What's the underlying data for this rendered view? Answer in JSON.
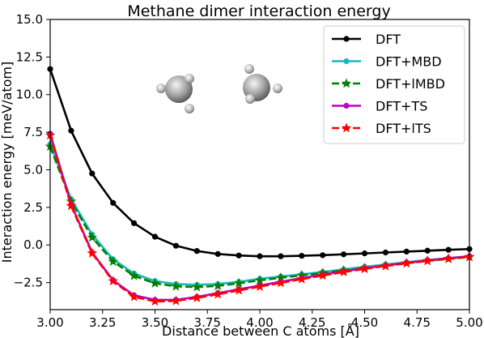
{
  "chart_data": {
    "type": "line",
    "title": "Methane dimer interaction energy",
    "xlabel": "Distance between C atoms [Å]",
    "ylabel": "Interaction energy [meV/atom]",
    "xlim": [
      3.0,
      5.0
    ],
    "ylim": [
      -4.3,
      15.0
    ],
    "xticks": [
      "3.00",
      "3.25",
      "3.50",
      "3.75",
      "4.00",
      "4.25",
      "4.50",
      "4.75",
      "5.00"
    ],
    "xtick_values": [
      3.0,
      3.25,
      3.5,
      3.75,
      4.0,
      4.25,
      4.5,
      4.75,
      5.0
    ],
    "yticks": [
      "−2.5",
      "0.0",
      "2.5",
      "5.0",
      "7.5",
      "10.0",
      "12.5",
      "15.0"
    ],
    "ytick_values": [
      -2.5,
      0.0,
      2.5,
      5.0,
      7.5,
      10.0,
      12.5,
      15.0
    ],
    "grid": false,
    "legend_position": "top-right",
    "x": [
      3.0,
      3.1,
      3.2,
      3.3,
      3.4,
      3.5,
      3.6,
      3.7,
      3.8,
      3.9,
      4.0,
      4.1,
      4.2,
      4.3,
      4.4,
      4.5,
      4.6,
      4.7,
      4.8,
      4.9,
      5.0
    ],
    "series": [
      {
        "name": "DFT",
        "color": "#000000",
        "linestyle": "solid",
        "marker": "circle",
        "values": [
          11.7,
          7.6,
          4.75,
          2.8,
          1.45,
          0.55,
          -0.05,
          -0.4,
          -0.6,
          -0.7,
          -0.75,
          -0.75,
          -0.72,
          -0.68,
          -0.62,
          -0.56,
          -0.5,
          -0.44,
          -0.38,
          -0.32,
          -0.27
        ]
      },
      {
        "name": "DFT+MBD",
        "color": "#1ab8b8",
        "linestyle": "solid",
        "marker": "circle",
        "values": [
          6.7,
          3.05,
          0.7,
          -0.95,
          -1.9,
          -2.4,
          -2.6,
          -2.65,
          -2.6,
          -2.45,
          -2.25,
          -2.1,
          -1.95,
          -1.8,
          -1.62,
          -1.45,
          -1.3,
          -1.15,
          -1.0,
          -0.88,
          -0.75
        ]
      },
      {
        "name": "DFT+lMBD",
        "color": "#008000",
        "linestyle": "dashed",
        "marker": "star",
        "values": [
          6.55,
          2.9,
          0.5,
          -1.1,
          -2.05,
          -2.55,
          -2.75,
          -2.8,
          -2.72,
          -2.55,
          -2.35,
          -2.18,
          -2.02,
          -1.86,
          -1.7,
          -1.53,
          -1.37,
          -1.21,
          -1.06,
          -0.93,
          -0.8
        ]
      },
      {
        "name": "DFT+TS",
        "color": "#c000c0",
        "linestyle": "solid",
        "marker": "circle",
        "values": [
          7.4,
          2.7,
          -0.5,
          -2.35,
          -3.35,
          -3.65,
          -3.65,
          -3.45,
          -3.2,
          -2.95,
          -2.7,
          -2.45,
          -2.2,
          -1.97,
          -1.75,
          -1.55,
          -1.36,
          -1.18,
          -1.02,
          -0.88,
          -0.75
        ]
      },
      {
        "name": "DFT+lTS",
        "color": "#ff0000",
        "linestyle": "dashed",
        "marker": "star",
        "values": [
          7.3,
          2.6,
          -0.55,
          -2.4,
          -3.45,
          -3.75,
          -3.72,
          -3.52,
          -3.28,
          -3.02,
          -2.77,
          -2.52,
          -2.27,
          -2.03,
          -1.8,
          -1.59,
          -1.4,
          -1.22,
          -1.06,
          -0.91,
          -0.78
        ]
      }
    ]
  }
}
